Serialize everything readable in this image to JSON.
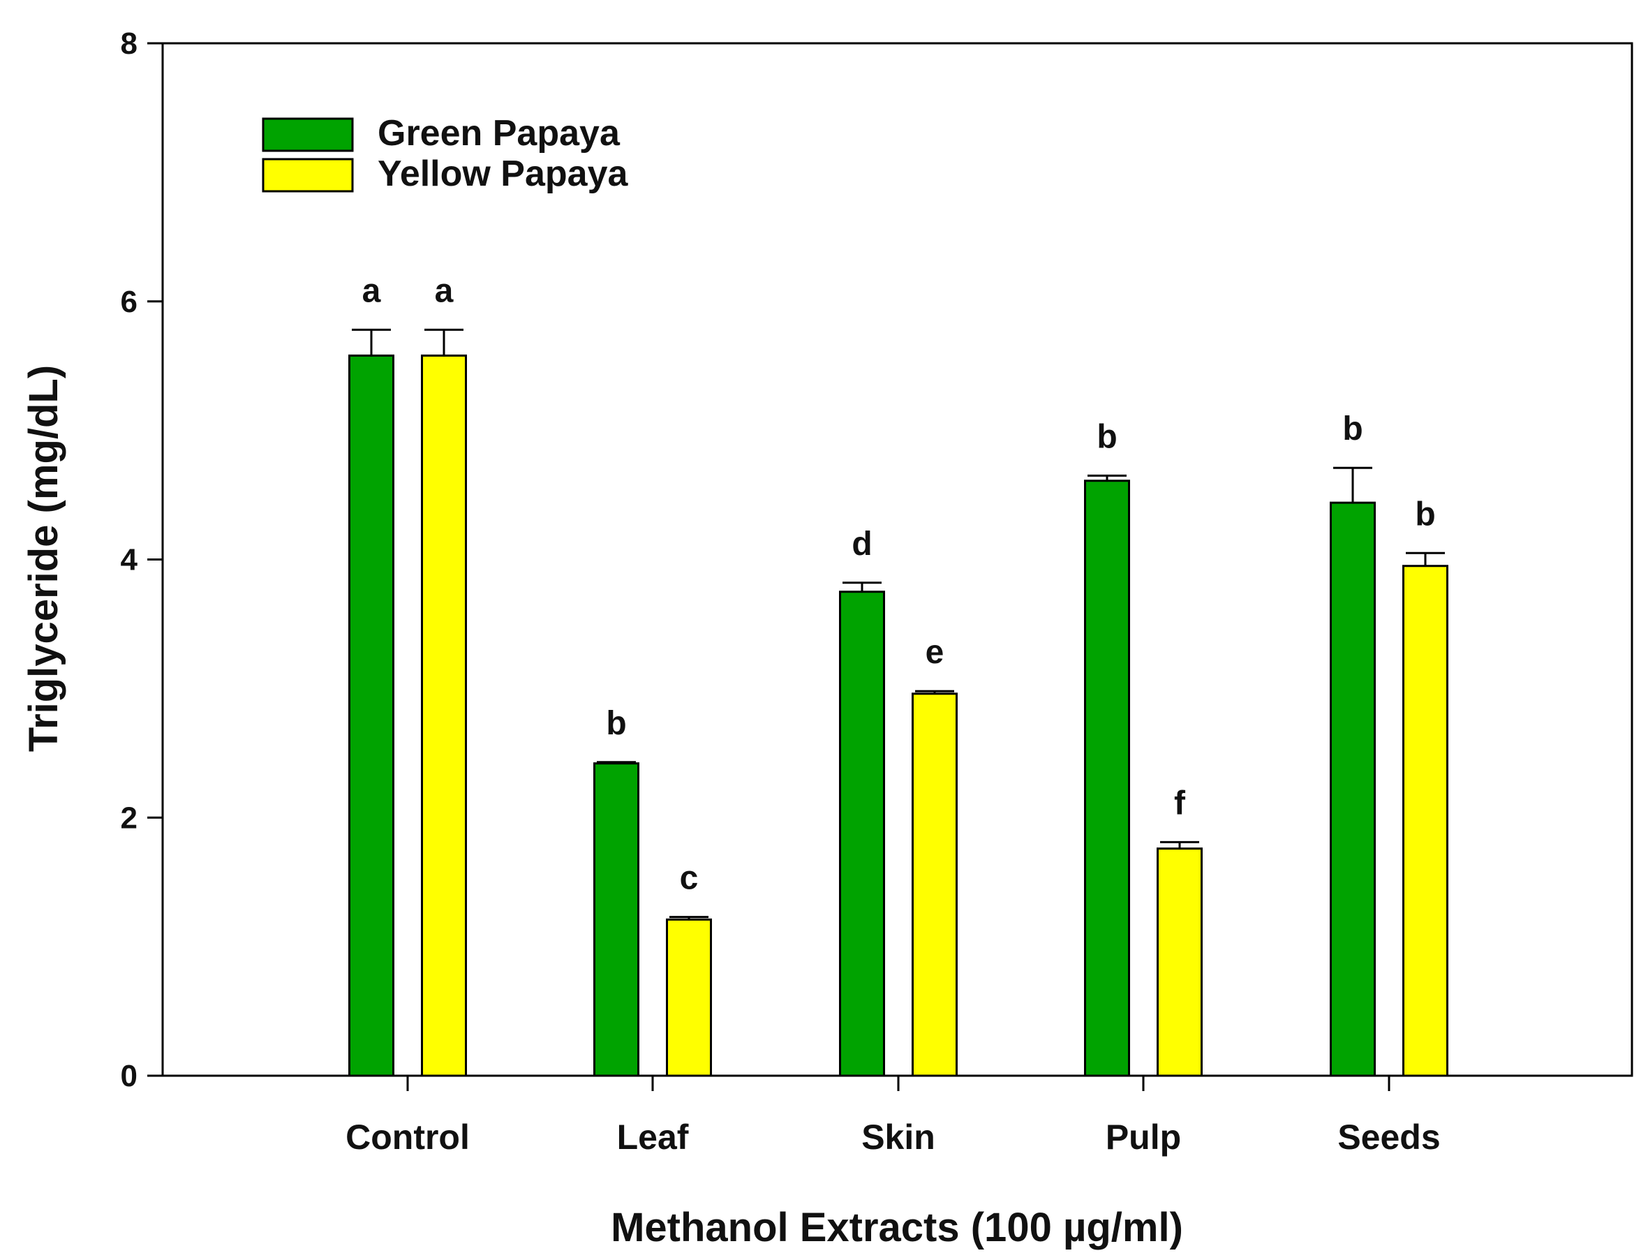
{
  "chart_data": {
    "type": "bar",
    "title": "",
    "xlabel": "Methanol Extracts (100 µg/ml)",
    "ylabel": "Triglyceride (mg/dL)",
    "ylim": [
      0,
      8
    ],
    "yticks": [
      "0",
      "2",
      "4",
      "6",
      "8"
    ],
    "grid": false,
    "legend_position": "top-left",
    "categories": [
      "Control",
      "Leaf",
      "Skin",
      "Pulp",
      "Seeds"
    ],
    "series": [
      {
        "name": "Green Papaya",
        "color": "#00a300",
        "values": [
          5.58,
          2.42,
          3.75,
          4.61,
          4.44
        ],
        "errors": [
          0.2,
          0.01,
          0.07,
          0.04,
          0.27
        ],
        "labels": [
          "a",
          "b",
          "d",
          "b",
          "b"
        ]
      },
      {
        "name": "Yellow Papaya",
        "color": "#ffff00",
        "values": [
          5.58,
          1.21,
          2.96,
          1.76,
          3.95
        ],
        "errors": [
          0.2,
          0.02,
          0.02,
          0.05,
          0.1
        ],
        "labels": [
          "a",
          "c",
          "e",
          "f",
          "b"
        ]
      }
    ]
  }
}
